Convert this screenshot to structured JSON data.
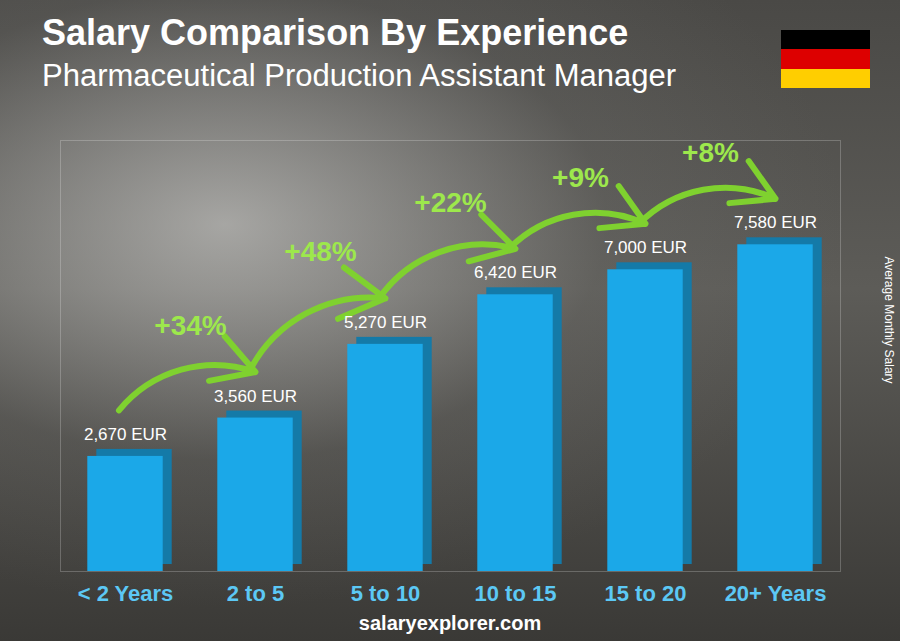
{
  "chart_data": {
    "type": "bar",
    "title": "Salary Comparison By Experience",
    "subtitle": "Pharmaceutical Production Assistant Manager",
    "categories": [
      "< 2 Years",
      "2 to 5",
      "5 to 10",
      "10 to 15",
      "15 to 20",
      "20+ Years"
    ],
    "values": [
      2670,
      3560,
      5270,
      6420,
      7000,
      7580
    ],
    "value_labels": [
      "2,670 EUR",
      "3,560 EUR",
      "5,270 EUR",
      "6,420 EUR",
      "7,000 EUR",
      "7,580 EUR"
    ],
    "data_labels": true,
    "annotations": [
      "+34%",
      "+48%",
      "+22%",
      "+9%",
      "+8%"
    ],
    "color": "#1ba8e8",
    "ylabel": "Average Monthly Salary",
    "ylim": [
      0,
      10000
    ],
    "yticks": [],
    "tick_labels": "x",
    "grid": false,
    "source": "salaryexplorer.com"
  }
}
